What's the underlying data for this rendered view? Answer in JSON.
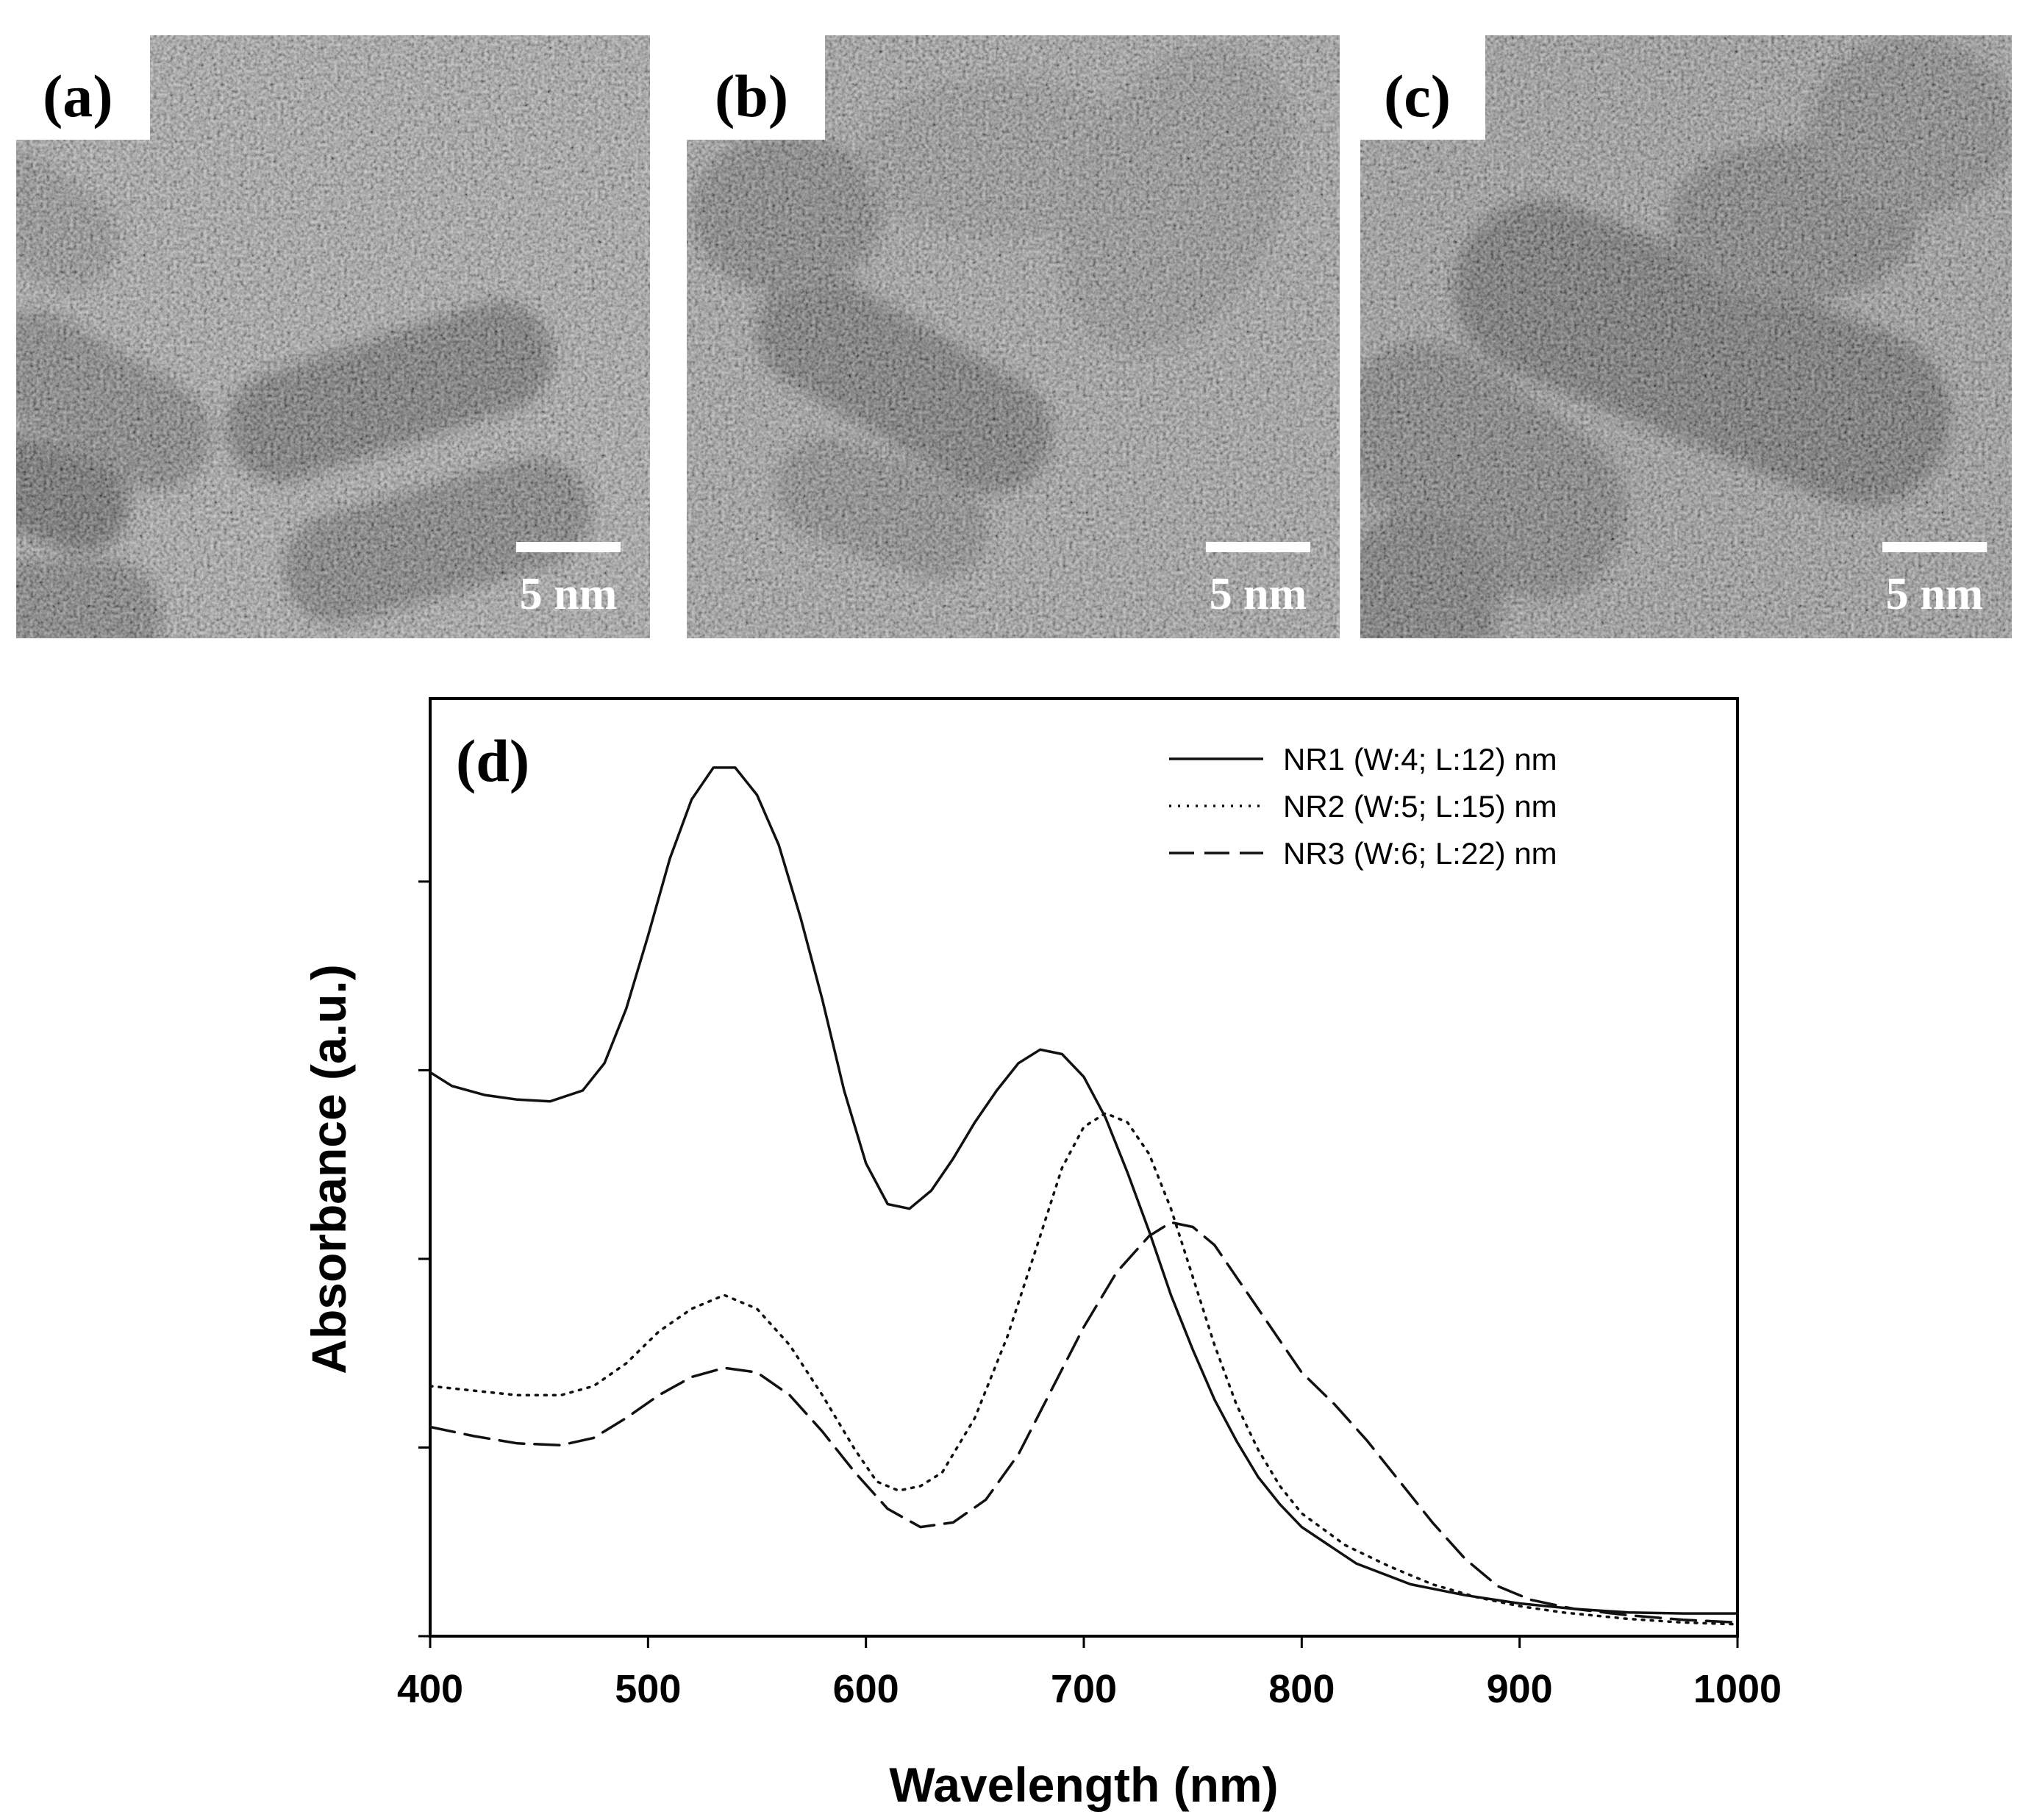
{
  "panels": {
    "a": {
      "label": "(a)",
      "scale_bar": "5 nm"
    },
    "b": {
      "label": "(b)",
      "scale_bar": "5 nm"
    },
    "c": {
      "label": "(c)",
      "scale_bar": "5 nm"
    },
    "d": {
      "label": "(d)"
    }
  },
  "chart_data": {
    "type": "line",
    "title": "",
    "xlabel": "Wavelength (nm)",
    "ylabel": "Absorbance (a.u.)",
    "xlim": [
      400,
      1000
    ],
    "ylim": [
      0,
      1
    ],
    "x_ticks": [
      400,
      500,
      600,
      700,
      800,
      900,
      1000
    ],
    "y_ticks_labeled": false,
    "grid": false,
    "legend_position": "top-right",
    "series": [
      {
        "name": "NR1 (W:4; L:12) nm",
        "style": "solid",
        "points": [
          [
            400,
            0.62
          ],
          [
            410,
            0.605
          ],
          [
            425,
            0.595
          ],
          [
            440,
            0.59
          ],
          [
            455,
            0.588
          ],
          [
            470,
            0.6
          ],
          [
            480,
            0.63
          ],
          [
            490,
            0.69
          ],
          [
            500,
            0.77
          ],
          [
            510,
            0.855
          ],
          [
            520,
            0.92
          ],
          [
            530,
            0.955
          ],
          [
            540,
            0.955
          ],
          [
            550,
            0.925
          ],
          [
            560,
            0.87
          ],
          [
            570,
            0.79
          ],
          [
            580,
            0.7
          ],
          [
            590,
            0.6
          ],
          [
            600,
            0.52
          ],
          [
            610,
            0.475
          ],
          [
            620,
            0.47
          ],
          [
            630,
            0.49
          ],
          [
            640,
            0.525
          ],
          [
            650,
            0.565
          ],
          [
            660,
            0.6
          ],
          [
            670,
            0.63
          ],
          [
            680,
            0.645
          ],
          [
            690,
            0.64
          ],
          [
            700,
            0.615
          ],
          [
            710,
            0.57
          ],
          [
            720,
            0.51
          ],
          [
            730,
            0.445
          ],
          [
            740,
            0.375
          ],
          [
            750,
            0.315
          ],
          [
            760,
            0.26
          ],
          [
            770,
            0.215
          ],
          [
            780,
            0.175
          ],
          [
            790,
            0.145
          ],
          [
            800,
            0.12
          ],
          [
            825,
            0.08
          ],
          [
            850,
            0.057
          ],
          [
            875,
            0.045
          ],
          [
            900,
            0.036
          ],
          [
            925,
            0.03
          ],
          [
            950,
            0.026
          ],
          [
            975,
            0.025
          ],
          [
            1000,
            0.025
          ]
        ]
      },
      {
        "name": "NR2 (W:5; L:15) nm",
        "style": "dotted",
        "points": [
          [
            400,
            0.275
          ],
          [
            420,
            0.27
          ],
          [
            440,
            0.265
          ],
          [
            460,
            0.265
          ],
          [
            475,
            0.275
          ],
          [
            490,
            0.3
          ],
          [
            505,
            0.335
          ],
          [
            520,
            0.36
          ],
          [
            535,
            0.375
          ],
          [
            550,
            0.36
          ],
          [
            565,
            0.32
          ],
          [
            580,
            0.265
          ],
          [
            595,
            0.205
          ],
          [
            605,
            0.17
          ],
          [
            615,
            0.16
          ],
          [
            625,
            0.165
          ],
          [
            635,
            0.18
          ],
          [
            650,
            0.24
          ],
          [
            665,
            0.33
          ],
          [
            680,
            0.44
          ],
          [
            690,
            0.515
          ],
          [
            700,
            0.56
          ],
          [
            710,
            0.575
          ],
          [
            720,
            0.565
          ],
          [
            730,
            0.53
          ],
          [
            740,
            0.47
          ],
          [
            750,
            0.395
          ],
          [
            760,
            0.32
          ],
          [
            770,
            0.255
          ],
          [
            780,
            0.205
          ],
          [
            790,
            0.165
          ],
          [
            800,
            0.135
          ],
          [
            820,
            0.1
          ],
          [
            840,
            0.077
          ],
          [
            860,
            0.057
          ],
          [
            880,
            0.043
          ],
          [
            900,
            0.033
          ],
          [
            920,
            0.026
          ],
          [
            950,
            0.019
          ],
          [
            975,
            0.015
          ],
          [
            1000,
            0.013
          ]
        ]
      },
      {
        "name": "NR3 (W:6; L:22) nm",
        "style": "dashed",
        "points": [
          [
            400,
            0.23
          ],
          [
            420,
            0.22
          ],
          [
            440,
            0.212
          ],
          [
            460,
            0.21
          ],
          [
            475,
            0.218
          ],
          [
            490,
            0.24
          ],
          [
            505,
            0.265
          ],
          [
            520,
            0.285
          ],
          [
            535,
            0.295
          ],
          [
            550,
            0.29
          ],
          [
            565,
            0.265
          ],
          [
            580,
            0.225
          ],
          [
            595,
            0.18
          ],
          [
            610,
            0.14
          ],
          [
            625,
            0.12
          ],
          [
            640,
            0.125
          ],
          [
            655,
            0.15
          ],
          [
            670,
            0.2
          ],
          [
            685,
            0.27
          ],
          [
            700,
            0.34
          ],
          [
            715,
            0.4
          ],
          [
            730,
            0.44
          ],
          [
            740,
            0.455
          ],
          [
            750,
            0.45
          ],
          [
            760,
            0.43
          ],
          [
            770,
            0.395
          ],
          [
            780,
            0.36
          ],
          [
            790,
            0.325
          ],
          [
            800,
            0.29
          ],
          [
            815,
            0.255
          ],
          [
            830,
            0.215
          ],
          [
            845,
            0.17
          ],
          [
            860,
            0.125
          ],
          [
            875,
            0.085
          ],
          [
            890,
            0.055
          ],
          [
            905,
            0.04
          ],
          [
            925,
            0.03
          ],
          [
            950,
            0.023
          ],
          [
            975,
            0.018
          ],
          [
            1000,
            0.015
          ]
        ]
      }
    ]
  }
}
